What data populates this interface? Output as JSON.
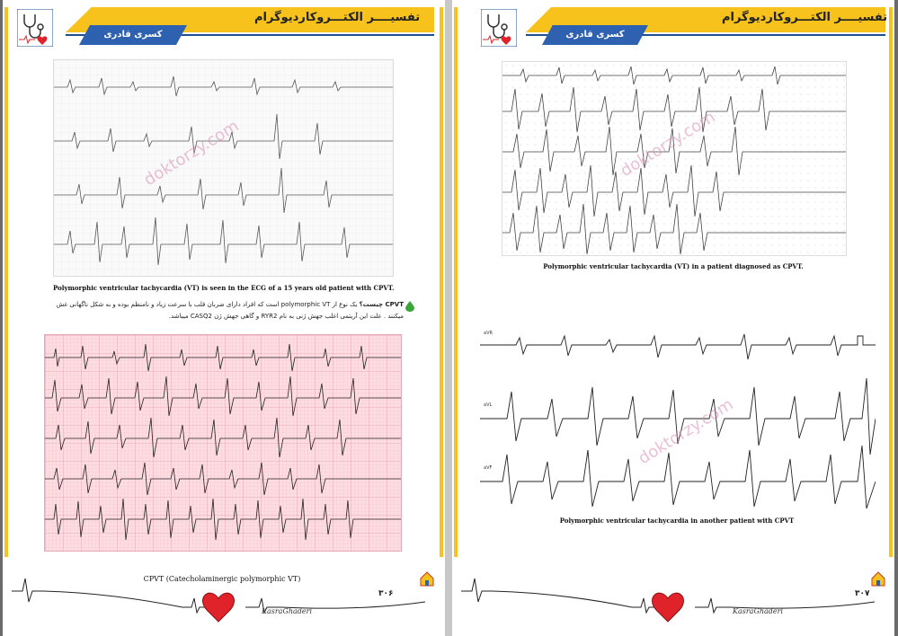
{
  "header": {
    "book_title": "تفسیــــر الکتـــروکاردیوگرام",
    "author": "کسری قادری"
  },
  "left_page": {
    "figure1_caption": "Polymorphic ventricular tachycardia (VT) is seen in the ECG of a 15 years old patient with CPVT.",
    "para_lead": "CPVT چیست؟",
    "para_line1": "یک نوع از polymorphic VT است که افراد دارای ضربان قلب با سرعت زیاد و نامنظم بوده و به شکل ناگهانی غش",
    "para_line2": "میکنند . علت این آریتمی اغلب جهش ژنی به نام RYR2 و گاهی جهش ژن CASQ2 میباشد.",
    "figure2_caption": "CPVT (Catecholaminergic polymorphic VT)",
    "page_number": "۳۰۶",
    "signature": "KasraGhaderi"
  },
  "right_page": {
    "figure1_caption": "Polymorphic ventricular tachycardia (VT) in a patient diagnosed as CPVT.",
    "figure2_caption": "Polymorphic ventricular tachycardia in another patient with CPVT",
    "lead_labels": [
      "aVR",
      "aVL",
      "aVF"
    ],
    "page_number": "۳۰۷",
    "signature": "KasraGhaderi"
  },
  "watermark": "doktorzy.com",
  "colors": {
    "accent_yellow": "#f7c21b",
    "accent_blue": "#2e62b0",
    "ecg_pink": "#fbdde2",
    "heart_red": "#e0232b"
  },
  "icons": [
    "stethoscope-icon",
    "heart-icon",
    "house-icon"
  ]
}
